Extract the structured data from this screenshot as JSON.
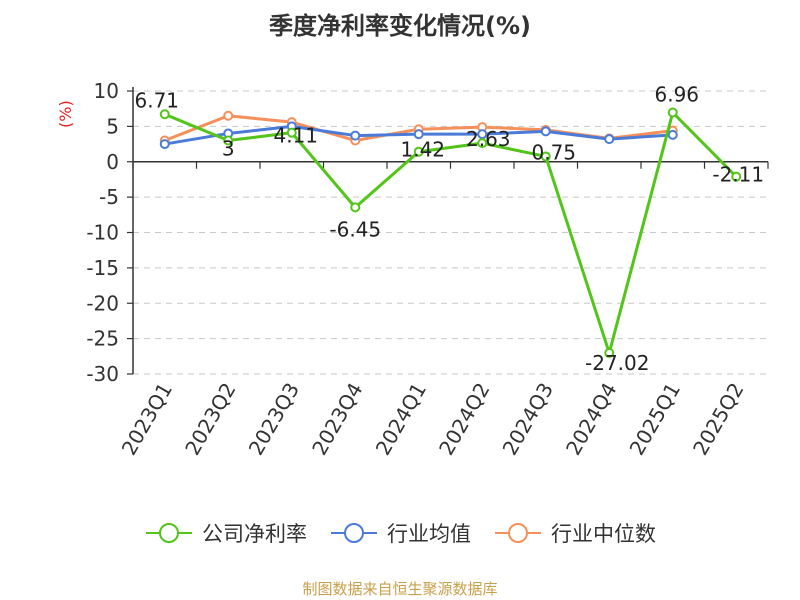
{
  "chart_data": {
    "type": "line",
    "title": "季度净利率变化情况(%)",
    "ylabel": "(%)",
    "xlabel": "",
    "categories": [
      "2023Q1",
      "2023Q2",
      "2023Q3",
      "2023Q4",
      "2024Q1",
      "2024Q2",
      "2024Q3",
      "2024Q4",
      "2025Q1",
      "2025Q2"
    ],
    "ylim": [
      -30,
      10
    ],
    "yticks": [
      10,
      5,
      0,
      -5,
      -10,
      -15,
      -20,
      -25,
      -30
    ],
    "grid": true,
    "legend_position": "bottom",
    "series": [
      {
        "name": "公司净利率",
        "color": "#52c41a",
        "values": [
          6.71,
          3,
          4.11,
          -6.45,
          1.42,
          2.63,
          0.75,
          -27.02,
          6.96,
          -2.11
        ],
        "labels": [
          "6.71",
          "3",
          "4.11",
          "-6.45",
          "1.42",
          "2.63",
          "0.75",
          "-27.02",
          "6.96",
          "-2.11"
        ]
      },
      {
        "name": "行业均值",
        "color": "#4a7bd8",
        "values": [
          2.5,
          4.0,
          5.0,
          3.7,
          3.9,
          3.9,
          4.3,
          3.2,
          3.8,
          null
        ]
      },
      {
        "name": "行业中位数",
        "color": "#f5905a",
        "values": [
          3.0,
          6.5,
          5.6,
          3.0,
          4.6,
          4.9,
          4.5,
          3.3,
          4.4,
          null
        ]
      }
    ]
  },
  "source": "制图数据来自恒生聚源数据库"
}
